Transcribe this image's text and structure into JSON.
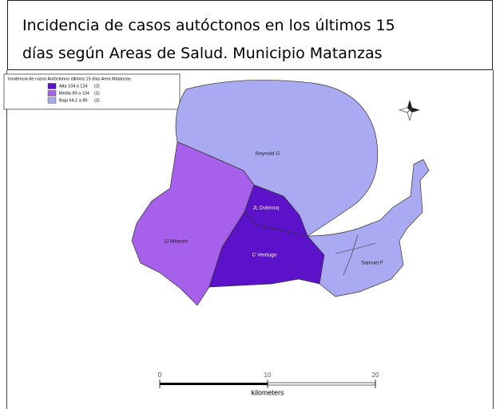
{
  "title": [
    "Incidencia de casos autóctonos en los últimos 15",
    "días según Areas de Salud.  Municipio Matanzas"
  ],
  "legend": {
    "title": "Incidencia de casos Autóctonos últimos 15 días Area Matanzas",
    "items": [
      {
        "label": "Alta 104 a 124",
        "count": "(2)",
        "color": "#5b12c9"
      },
      {
        "label": "Media 89  a 104",
        "count": "(1)",
        "color": "#a660ea"
      },
      {
        "label": "Baja 64,1 a  89",
        "count": "(2)",
        "color": "#aaaaf2"
      }
    ]
  },
  "areas": [
    {
      "name": "Reynold G",
      "color": "#aaaaf2"
    },
    {
      "name": "JJ Milanés",
      "color": "#a660ea"
    },
    {
      "name": "JL Dubrocq",
      "color": "#5b12c9"
    },
    {
      "name": "C Verdugo",
      "color": "#5b12c9"
    },
    {
      "name": "Samuel F",
      "color": "#aaaaf2"
    }
  ],
  "scale": {
    "ticks": [
      "0",
      "10",
      "20"
    ],
    "unit": "kilometers"
  }
}
